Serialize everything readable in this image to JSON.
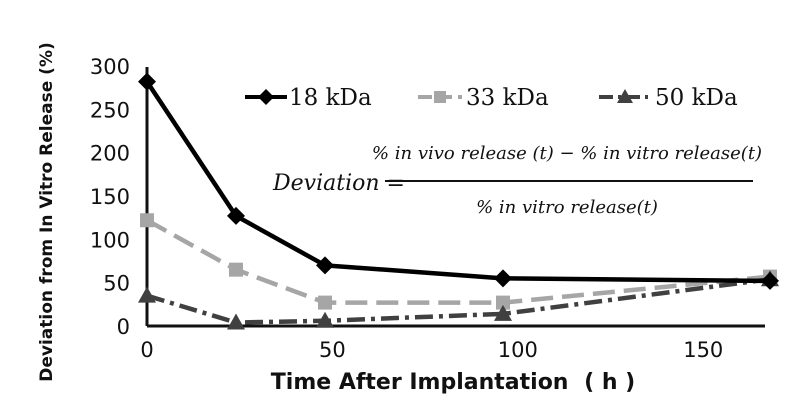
{
  "chart_data": {
    "type": "line",
    "title": "",
    "xlabel": "Time After Implantation (h)",
    "xlabel_main": "Time After Implantation",
    "xlabel_unit": "( h )",
    "ylabel": "Deviation from In Vitro Release (%)",
    "xlim": [
      0,
      168
    ],
    "ylim": [
      0,
      300
    ],
    "x_ticks": [
      "0",
      "50",
      "100",
      "150"
    ],
    "y_ticks": [
      "0",
      "50",
      "100",
      "150",
      "200",
      "250",
      "300"
    ],
    "grid": false,
    "legend": "top-right",
    "series": [
      {
        "name": "18 kDa",
        "color": "#000000",
        "marker": "diamond",
        "dash": "solid",
        "x": [
          0,
          24,
          48,
          96,
          168
        ],
        "y": [
          282,
          127,
          70,
          55,
          52
        ]
      },
      {
        "name": "33 kDa",
        "color": "#a6a6a6",
        "marker": "square",
        "dash": "long-dash",
        "x": [
          0,
          24,
          48,
          96,
          168
        ],
        "y": [
          122,
          65,
          27,
          27,
          57
        ]
      },
      {
        "name": "50 kDa",
        "color": "#404040",
        "marker": "triangle",
        "dash": "dash-dot",
        "x": [
          0,
          24,
          48,
          96,
          168
        ],
        "y": [
          35,
          4,
          6,
          14,
          54
        ]
      }
    ],
    "annotation": {
      "lhs": "Deviation =",
      "numerator": "% in vivo release (t) − % in vitro release(t)",
      "denominator": "% in vitro release(t)"
    }
  }
}
